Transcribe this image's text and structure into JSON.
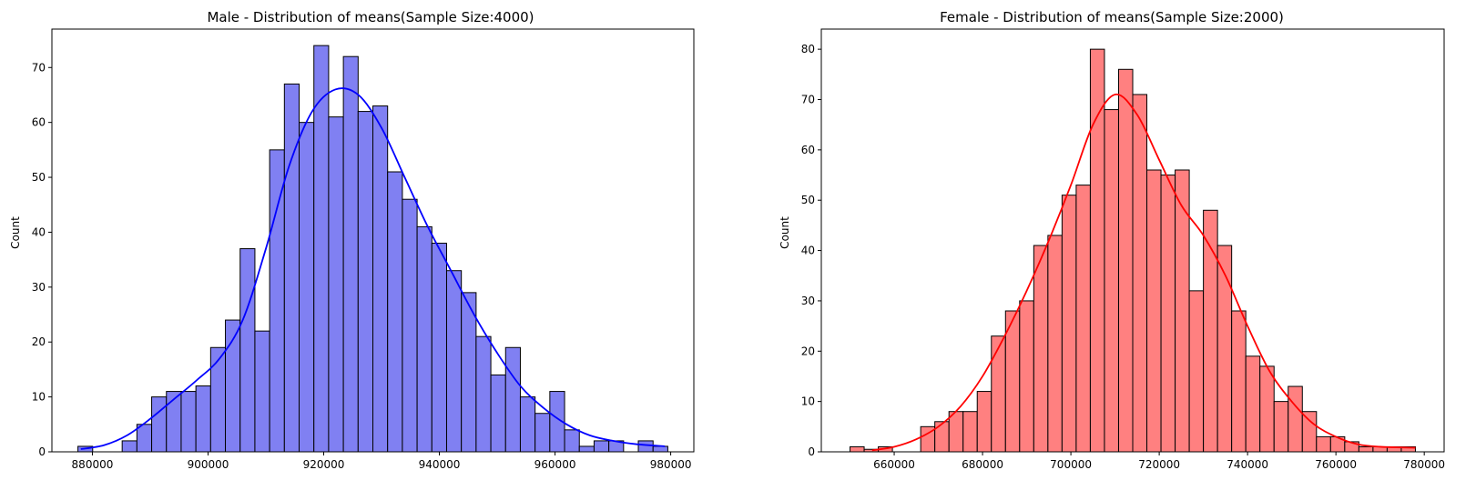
{
  "chart_data": [
    {
      "type": "bar",
      "title": "Male - Distribution of means(Sample Size:4000)",
      "xlabel": "",
      "ylabel": "Count",
      "xlim": [
        873000,
        984000
      ],
      "ylim": [
        0,
        77
      ],
      "xticks": [
        880000,
        900000,
        920000,
        940000,
        960000,
        980000
      ],
      "xtick_labels": [
        "880000",
        "900000",
        "920000",
        "940000",
        "960000",
        "980000"
      ],
      "yticks": [
        0,
        10,
        20,
        30,
        40,
        50,
        60,
        70
      ],
      "ytick_labels": [
        "0",
        "10",
        "20",
        "30",
        "40",
        "50",
        "60",
        "70"
      ],
      "bin_start": 877500,
      "bin_width": 2550,
      "counts": [
        1,
        0,
        0,
        2,
        5,
        10,
        11,
        11,
        12,
        19,
        24,
        37,
        22,
        55,
        67,
        60,
        74,
        61,
        72,
        62,
        63,
        51,
        46,
        41,
        38,
        33,
        29,
        21,
        14,
        19,
        10,
        7,
        11,
        4,
        1,
        2,
        2,
        0,
        2,
        1
      ],
      "kde_x": [
        878000,
        882000,
        886000,
        890000,
        894000,
        898000,
        902000,
        906000,
        910000,
        914000,
        918000,
        922000,
        926000,
        930000,
        934000,
        938000,
        942000,
        946000,
        950000,
        954000,
        958000,
        962000,
        966000,
        970000,
        974000,
        979000
      ],
      "kde_y": [
        0.5,
        1.2,
        3,
        6,
        9.5,
        13,
        17,
        24,
        37,
        52,
        62,
        66,
        65,
        59,
        50,
        41,
        33,
        25,
        18,
        12,
        8,
        5,
        3,
        2,
        1.4,
        1
      ],
      "bar_color": "#8080f2",
      "line_color": "#0000ff",
      "grid": false
    },
    {
      "type": "bar",
      "title": "Female - Distribution of means(Sample Size:2000)",
      "xlabel": "",
      "ylabel": "Count",
      "xlim": [
        643500,
        784500
      ],
      "ylim": [
        0,
        84
      ],
      "xticks": [
        660000,
        680000,
        700000,
        720000,
        740000,
        760000,
        780000
      ],
      "xtick_labels": [
        "660000",
        "680000",
        "700000",
        "720000",
        "740000",
        "760000",
        "780000"
      ],
      "yticks": [
        0,
        10,
        20,
        30,
        40,
        50,
        60,
        70,
        80
      ],
      "ytick_labels": [
        "0",
        "10",
        "20",
        "30",
        "40",
        "50",
        "60",
        "70",
        "80"
      ],
      "bin_start": 650000,
      "bin_width": 3200,
      "counts": [
        1,
        0.5,
        1,
        0,
        0,
        5,
        6,
        8,
        8,
        12,
        23,
        28,
        30,
        41,
        43,
        51,
        53,
        80,
        68,
        76,
        71,
        56,
        55,
        56,
        32,
        48,
        41,
        28,
        19,
        17,
        10,
        13,
        8,
        3,
        3,
        2,
        1,
        1,
        1,
        1
      ],
      "kde_x": [
        655000,
        660000,
        665000,
        670000,
        675000,
        680000,
        685000,
        690000,
        695000,
        700000,
        705000,
        710000,
        715000,
        720000,
        725000,
        730000,
        735000,
        740000,
        745000,
        750000,
        755000,
        760000,
        765000,
        770000,
        778000
      ],
      "kde_y": [
        0.3,
        1,
        2.5,
        5,
        9,
        15,
        23,
        32,
        42,
        53,
        65,
        71,
        67,
        58,
        49,
        43,
        35,
        25,
        16,
        10,
        5.5,
        3,
        1.5,
        1,
        0.8
      ],
      "bar_color": "#ff8080",
      "line_color": "#ff0000",
      "grid": false
    }
  ]
}
